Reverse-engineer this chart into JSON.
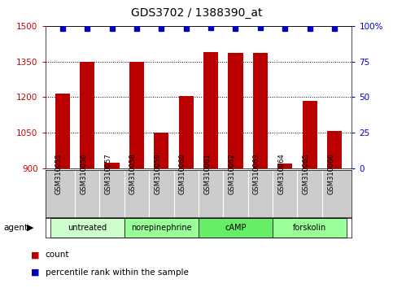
{
  "title": "GDS3702 / 1388390_at",
  "samples": [
    "GSM310055",
    "GSM310056",
    "GSM310057",
    "GSM310058",
    "GSM310059",
    "GSM310060",
    "GSM310061",
    "GSM310062",
    "GSM310063",
    "GSM310064",
    "GSM310065",
    "GSM310066"
  ],
  "counts": [
    1215,
    1350,
    925,
    1350,
    1050,
    1205,
    1390,
    1385,
    1385,
    922,
    1185,
    1058
  ],
  "percentiles": [
    98,
    98,
    98,
    98,
    98,
    98,
    99,
    98,
    99,
    98,
    98,
    98
  ],
  "ylim_left": [
    900,
    1500
  ],
  "ylim_right": [
    0,
    100
  ],
  "yticks_left": [
    900,
    1050,
    1200,
    1350,
    1500
  ],
  "yticks_right": [
    0,
    25,
    50,
    75,
    100
  ],
  "bar_color": "#bb0000",
  "dot_color": "#0000bb",
  "bg_color_plot": "#ffffff",
  "groups": [
    {
      "label": "untreated",
      "start": 0,
      "end": 3,
      "color": "#ccffcc"
    },
    {
      "label": "norepinephrine",
      "start": 3,
      "end": 6,
      "color": "#99ff99"
    },
    {
      "label": "cAMP",
      "start": 6,
      "end": 9,
      "color": "#66ee66"
    },
    {
      "label": "forskolin",
      "start": 9,
      "end": 12,
      "color": "#99ff99"
    }
  ],
  "group_colors": [
    "#ccffcc",
    "#99ff99",
    "#66ee66",
    "#99ff99"
  ],
  "legend_count_label": "count",
  "legend_pct_label": "percentile rank within the sample",
  "agent_label": "agent",
  "bar_width": 0.6,
  "tick_color_left": "#cc0000",
  "tick_color_right": "#0000cc",
  "sample_box_color": "#cccccc",
  "title_fontsize": 10
}
